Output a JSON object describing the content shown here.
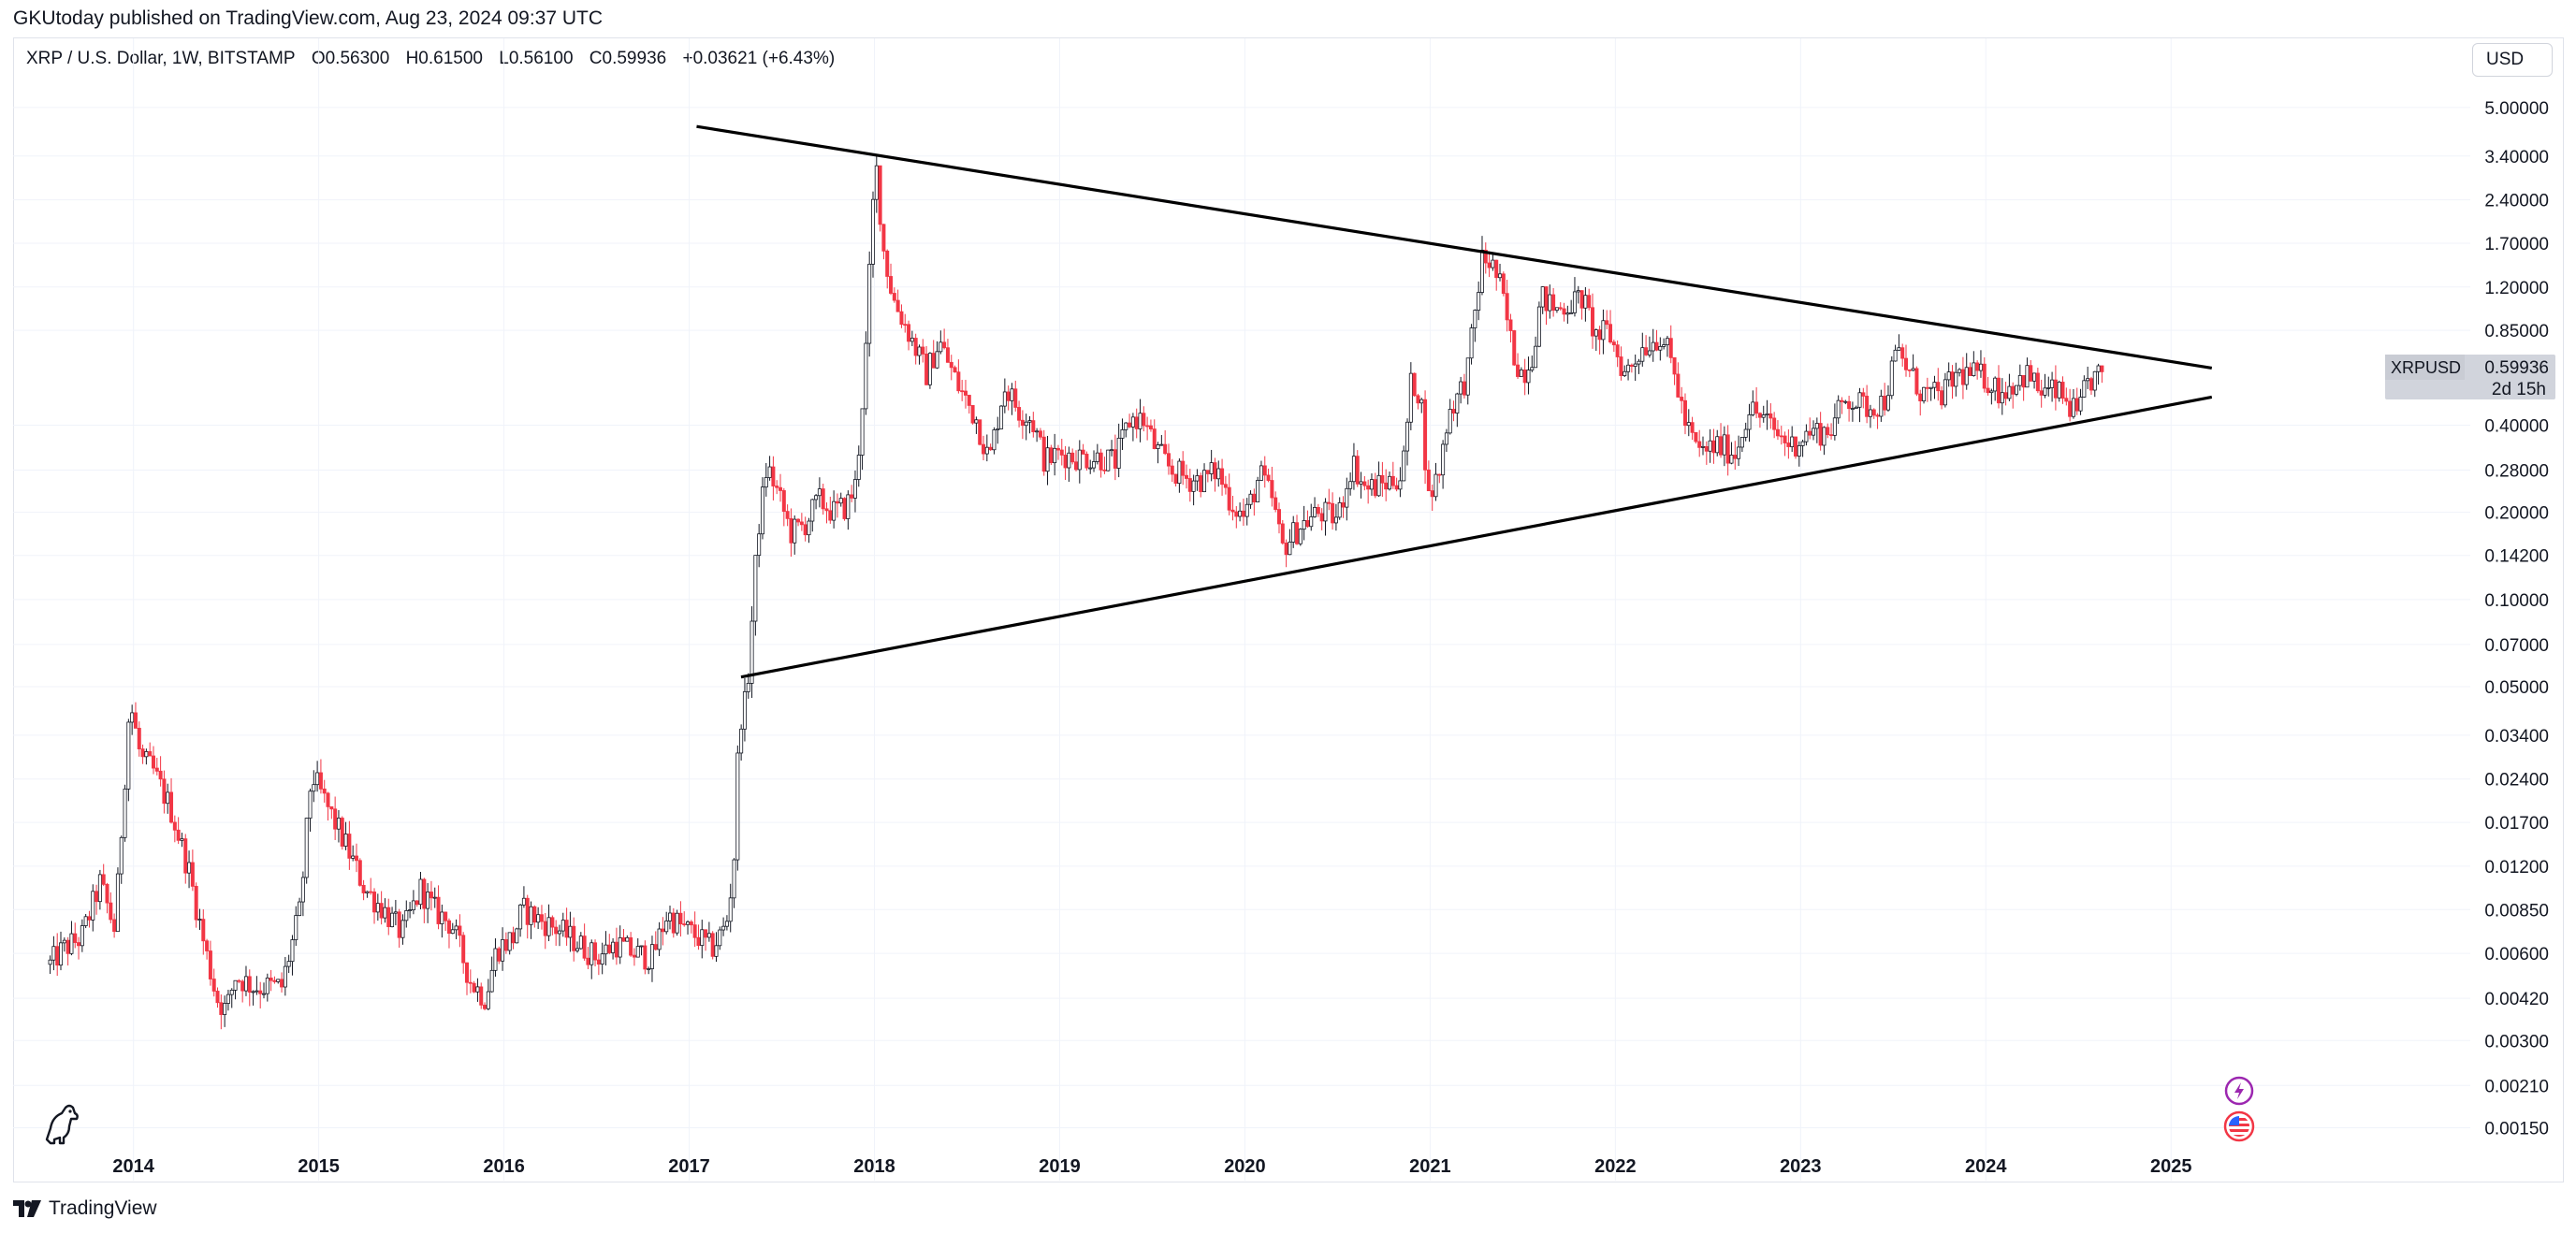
{
  "header": {
    "published": "GKUtoday published on TradingView.com, Aug 23, 2024 09:37 UTC"
  },
  "legend": {
    "symbol": "XRP / U.S. Dollar, 1W, BITSTAMP",
    "open": "O0.56300",
    "high": "H0.61500",
    "low": "L0.56100",
    "close": "C0.59936",
    "change": "+0.03621 (+6.43%)"
  },
  "currency_button": "USD",
  "price_label": {
    "ticker": "XRPUSD",
    "price": "0.59936",
    "countdown": "2d 15h"
  },
  "footer": {
    "brand": "TradingView"
  },
  "colors": {
    "up": "#131722",
    "down": "#f23645",
    "trendline": "#000000",
    "grid": "#f0f3fa",
    "label_bg": "#d1d4dc"
  },
  "icons": [
    "dino-icon",
    "lightning-icon",
    "us-flag-icon",
    "tradingview-logo-icon"
  ],
  "chart_data": {
    "type": "candlestick",
    "scale": "log",
    "timeframe": "1W",
    "x_range": [
      2013.35,
      2026.1
    ],
    "y_range": [
      0.00125,
      6.2
    ],
    "y_ticks": [
      {
        "value": 5.0,
        "label": "5.00000"
      },
      {
        "value": 3.4,
        "label": "3.40000"
      },
      {
        "value": 2.4,
        "label": "2.40000"
      },
      {
        "value": 1.7,
        "label": "1.70000"
      },
      {
        "value": 1.2,
        "label": "1.20000"
      },
      {
        "value": 0.85,
        "label": "0.85000"
      },
      {
        "value": 0.4,
        "label": "0.40000"
      },
      {
        "value": 0.28,
        "label": "0.28000"
      },
      {
        "value": 0.2,
        "label": "0.20000"
      },
      {
        "value": 0.142,
        "label": "0.14200"
      },
      {
        "value": 0.1,
        "label": "0.10000"
      },
      {
        "value": 0.07,
        "label": "0.07000"
      },
      {
        "value": 0.05,
        "label": "0.05000"
      },
      {
        "value": 0.034,
        "label": "0.03400"
      },
      {
        "value": 0.024,
        "label": "0.02400"
      },
      {
        "value": 0.017,
        "label": "0.01700"
      },
      {
        "value": 0.012,
        "label": "0.01200"
      },
      {
        "value": 0.0085,
        "label": "0.00850"
      },
      {
        "value": 0.006,
        "label": "0.00600"
      },
      {
        "value": 0.0042,
        "label": "0.00420"
      },
      {
        "value": 0.003,
        "label": "0.00300"
      },
      {
        "value": 0.0021,
        "label": "0.00210"
      },
      {
        "value": 0.0015,
        "label": "0.00150"
      }
    ],
    "x_ticks": [
      {
        "value": 2014,
        "label": "2014"
      },
      {
        "value": 2015,
        "label": "2015"
      },
      {
        "value": 2016,
        "label": "2016"
      },
      {
        "value": 2017,
        "label": "2017"
      },
      {
        "value": 2018,
        "label": "2018"
      },
      {
        "value": 2019,
        "label": "2019"
      },
      {
        "value": 2020,
        "label": "2020"
      },
      {
        "value": 2021,
        "label": "2021"
      },
      {
        "value": 2022,
        "label": "2022"
      },
      {
        "value": 2023,
        "label": "2023"
      },
      {
        "value": 2024,
        "label": "2024"
      },
      {
        "value": 2025,
        "label": "2025"
      }
    ],
    "price_path": [
      [
        2013.55,
        0.0055
      ],
      [
        2013.62,
        0.0062
      ],
      [
        2013.72,
        0.0068
      ],
      [
        2013.82,
        0.0105
      ],
      [
        2013.9,
        0.0072
      ],
      [
        2013.98,
        0.045
      ],
      [
        2014.04,
        0.028
      ],
      [
        2014.1,
        0.026
      ],
      [
        2014.2,
        0.019
      ],
      [
        2014.3,
        0.0115
      ],
      [
        2014.38,
        0.0065
      ],
      [
        2014.45,
        0.0042
      ],
      [
        2014.5,
        0.0038
      ],
      [
        2014.55,
        0.005
      ],
      [
        2014.65,
        0.0046
      ],
      [
        2014.8,
        0.0046
      ],
      [
        2014.9,
        0.0085
      ],
      [
        2014.96,
        0.025
      ],
      [
        2015.05,
        0.019
      ],
      [
        2015.15,
        0.014
      ],
      [
        2015.25,
        0.01
      ],
      [
        2015.35,
        0.0085
      ],
      [
        2015.45,
        0.007
      ],
      [
        2015.55,
        0.01
      ],
      [
        2015.62,
        0.0085
      ],
      [
        2015.72,
        0.0075
      ],
      [
        2015.82,
        0.0048
      ],
      [
        2015.9,
        0.0042
      ],
      [
        2015.96,
        0.0062
      ],
      [
        2016.05,
        0.0068
      ],
      [
        2016.1,
        0.0085
      ],
      [
        2016.2,
        0.0078
      ],
      [
        2016.3,
        0.0072
      ],
      [
        2016.4,
        0.0065
      ],
      [
        2016.5,
        0.0058
      ],
      [
        2016.6,
        0.0065
      ],
      [
        2016.7,
        0.006
      ],
      [
        2016.8,
        0.0058
      ],
      [
        2016.88,
        0.0082
      ],
      [
        2016.95,
        0.0075
      ],
      [
        2017.05,
        0.0068
      ],
      [
        2017.12,
        0.0062
      ],
      [
        2017.2,
        0.0075
      ],
      [
        2017.24,
        0.012
      ],
      [
        2017.27,
        0.038
      ],
      [
        2017.31,
        0.045
      ],
      [
        2017.37,
        0.17
      ],
      [
        2017.42,
        0.29
      ],
      [
        2017.47,
        0.24
      ],
      [
        2017.55,
        0.17
      ],
      [
        2017.62,
        0.18
      ],
      [
        2017.7,
        0.22
      ],
      [
        2017.78,
        0.2
      ],
      [
        2017.85,
        0.21
      ],
      [
        2017.9,
        0.25
      ],
      [
        2017.95,
        0.65
      ],
      [
        2017.99,
        2.2
      ],
      [
        2018.01,
        3.1
      ],
      [
        2018.05,
        1.6
      ],
      [
        2018.1,
        1.1
      ],
      [
        2018.18,
        0.85
      ],
      [
        2018.28,
        0.6
      ],
      [
        2018.35,
        0.78
      ],
      [
        2018.45,
        0.55
      ],
      [
        2018.55,
        0.42
      ],
      [
        2018.62,
        0.3
      ],
      [
        2018.7,
        0.55
      ],
      [
        2018.78,
        0.45
      ],
      [
        2018.85,
        0.42
      ],
      [
        2018.92,
        0.3
      ],
      [
        2019.0,
        0.32
      ],
      [
        2019.1,
        0.31
      ],
      [
        2019.2,
        0.31
      ],
      [
        2019.3,
        0.3
      ],
      [
        2019.38,
        0.42
      ],
      [
        2019.45,
        0.42
      ],
      [
        2019.52,
        0.33
      ],
      [
        2019.6,
        0.28
      ],
      [
        2019.7,
        0.26
      ],
      [
        2019.78,
        0.26
      ],
      [
        2019.85,
        0.28
      ],
      [
        2019.92,
        0.22
      ],
      [
        2020.0,
        0.19
      ],
      [
        2020.08,
        0.27
      ],
      [
        2020.15,
        0.22
      ],
      [
        2020.2,
        0.15
      ],
      [
        2020.3,
        0.18
      ],
      [
        2020.4,
        0.2
      ],
      [
        2020.5,
        0.19
      ],
      [
        2020.58,
        0.3
      ],
      [
        2020.65,
        0.24
      ],
      [
        2020.75,
        0.25
      ],
      [
        2020.85,
        0.27
      ],
      [
        2020.9,
        0.58
      ],
      [
        2020.95,
        0.5
      ],
      [
        2020.99,
        0.22
      ],
      [
        2021.05,
        0.28
      ],
      [
        2021.1,
        0.45
      ],
      [
        2021.15,
        0.5
      ],
      [
        2021.2,
        0.6
      ],
      [
        2021.28,
        1.5
      ],
      [
        2021.33,
        1.45
      ],
      [
        2021.38,
        1.2
      ],
      [
        2021.45,
        0.7
      ],
      [
        2021.5,
        0.6
      ],
      [
        2021.55,
        0.7
      ],
      [
        2021.6,
        1.1
      ],
      [
        2021.68,
        1.0
      ],
      [
        2021.75,
        1.05
      ],
      [
        2021.82,
        1.1
      ],
      [
        2021.9,
        0.8
      ],
      [
        2021.96,
        0.85
      ],
      [
        2022.05,
        0.6
      ],
      [
        2022.15,
        0.75
      ],
      [
        2022.25,
        0.82
      ],
      [
        2022.32,
        0.6
      ],
      [
        2022.38,
        0.4
      ],
      [
        2022.45,
        0.32
      ],
      [
        2022.55,
        0.34
      ],
      [
        2022.65,
        0.32
      ],
      [
        2022.72,
        0.46
      ],
      [
        2022.8,
        0.42
      ],
      [
        2022.88,
        0.37
      ],
      [
        2022.95,
        0.34
      ],
      [
        2023.05,
        0.38
      ],
      [
        2023.15,
        0.38
      ],
      [
        2023.25,
        0.5
      ],
      [
        2023.35,
        0.46
      ],
      [
        2023.45,
        0.48
      ],
      [
        2023.52,
        0.72
      ],
      [
        2023.58,
        0.62
      ],
      [
        2023.65,
        0.52
      ],
      [
        2023.75,
        0.5
      ],
      [
        2023.85,
        0.6
      ],
      [
        2023.92,
        0.6
      ],
      [
        2024.0,
        0.58
      ],
      [
        2024.08,
        0.52
      ],
      [
        2024.15,
        0.56
      ],
      [
        2024.22,
        0.6
      ],
      [
        2024.3,
        0.52
      ],
      [
        2024.38,
        0.52
      ],
      [
        2024.44,
        0.48
      ],
      [
        2024.5,
        0.42
      ],
      [
        2024.54,
        0.55
      ],
      [
        2024.58,
        0.58
      ],
      [
        2024.64,
        0.6
      ]
    ],
    "annotations": [
      {
        "type": "trendline",
        "from": [
          2017.04,
          4.3
        ],
        "to": [
          2025.22,
          0.63
        ]
      },
      {
        "type": "trendline",
        "from": [
          2017.28,
          0.054
        ],
        "to": [
          2025.22,
          0.5
        ]
      }
    ]
  }
}
